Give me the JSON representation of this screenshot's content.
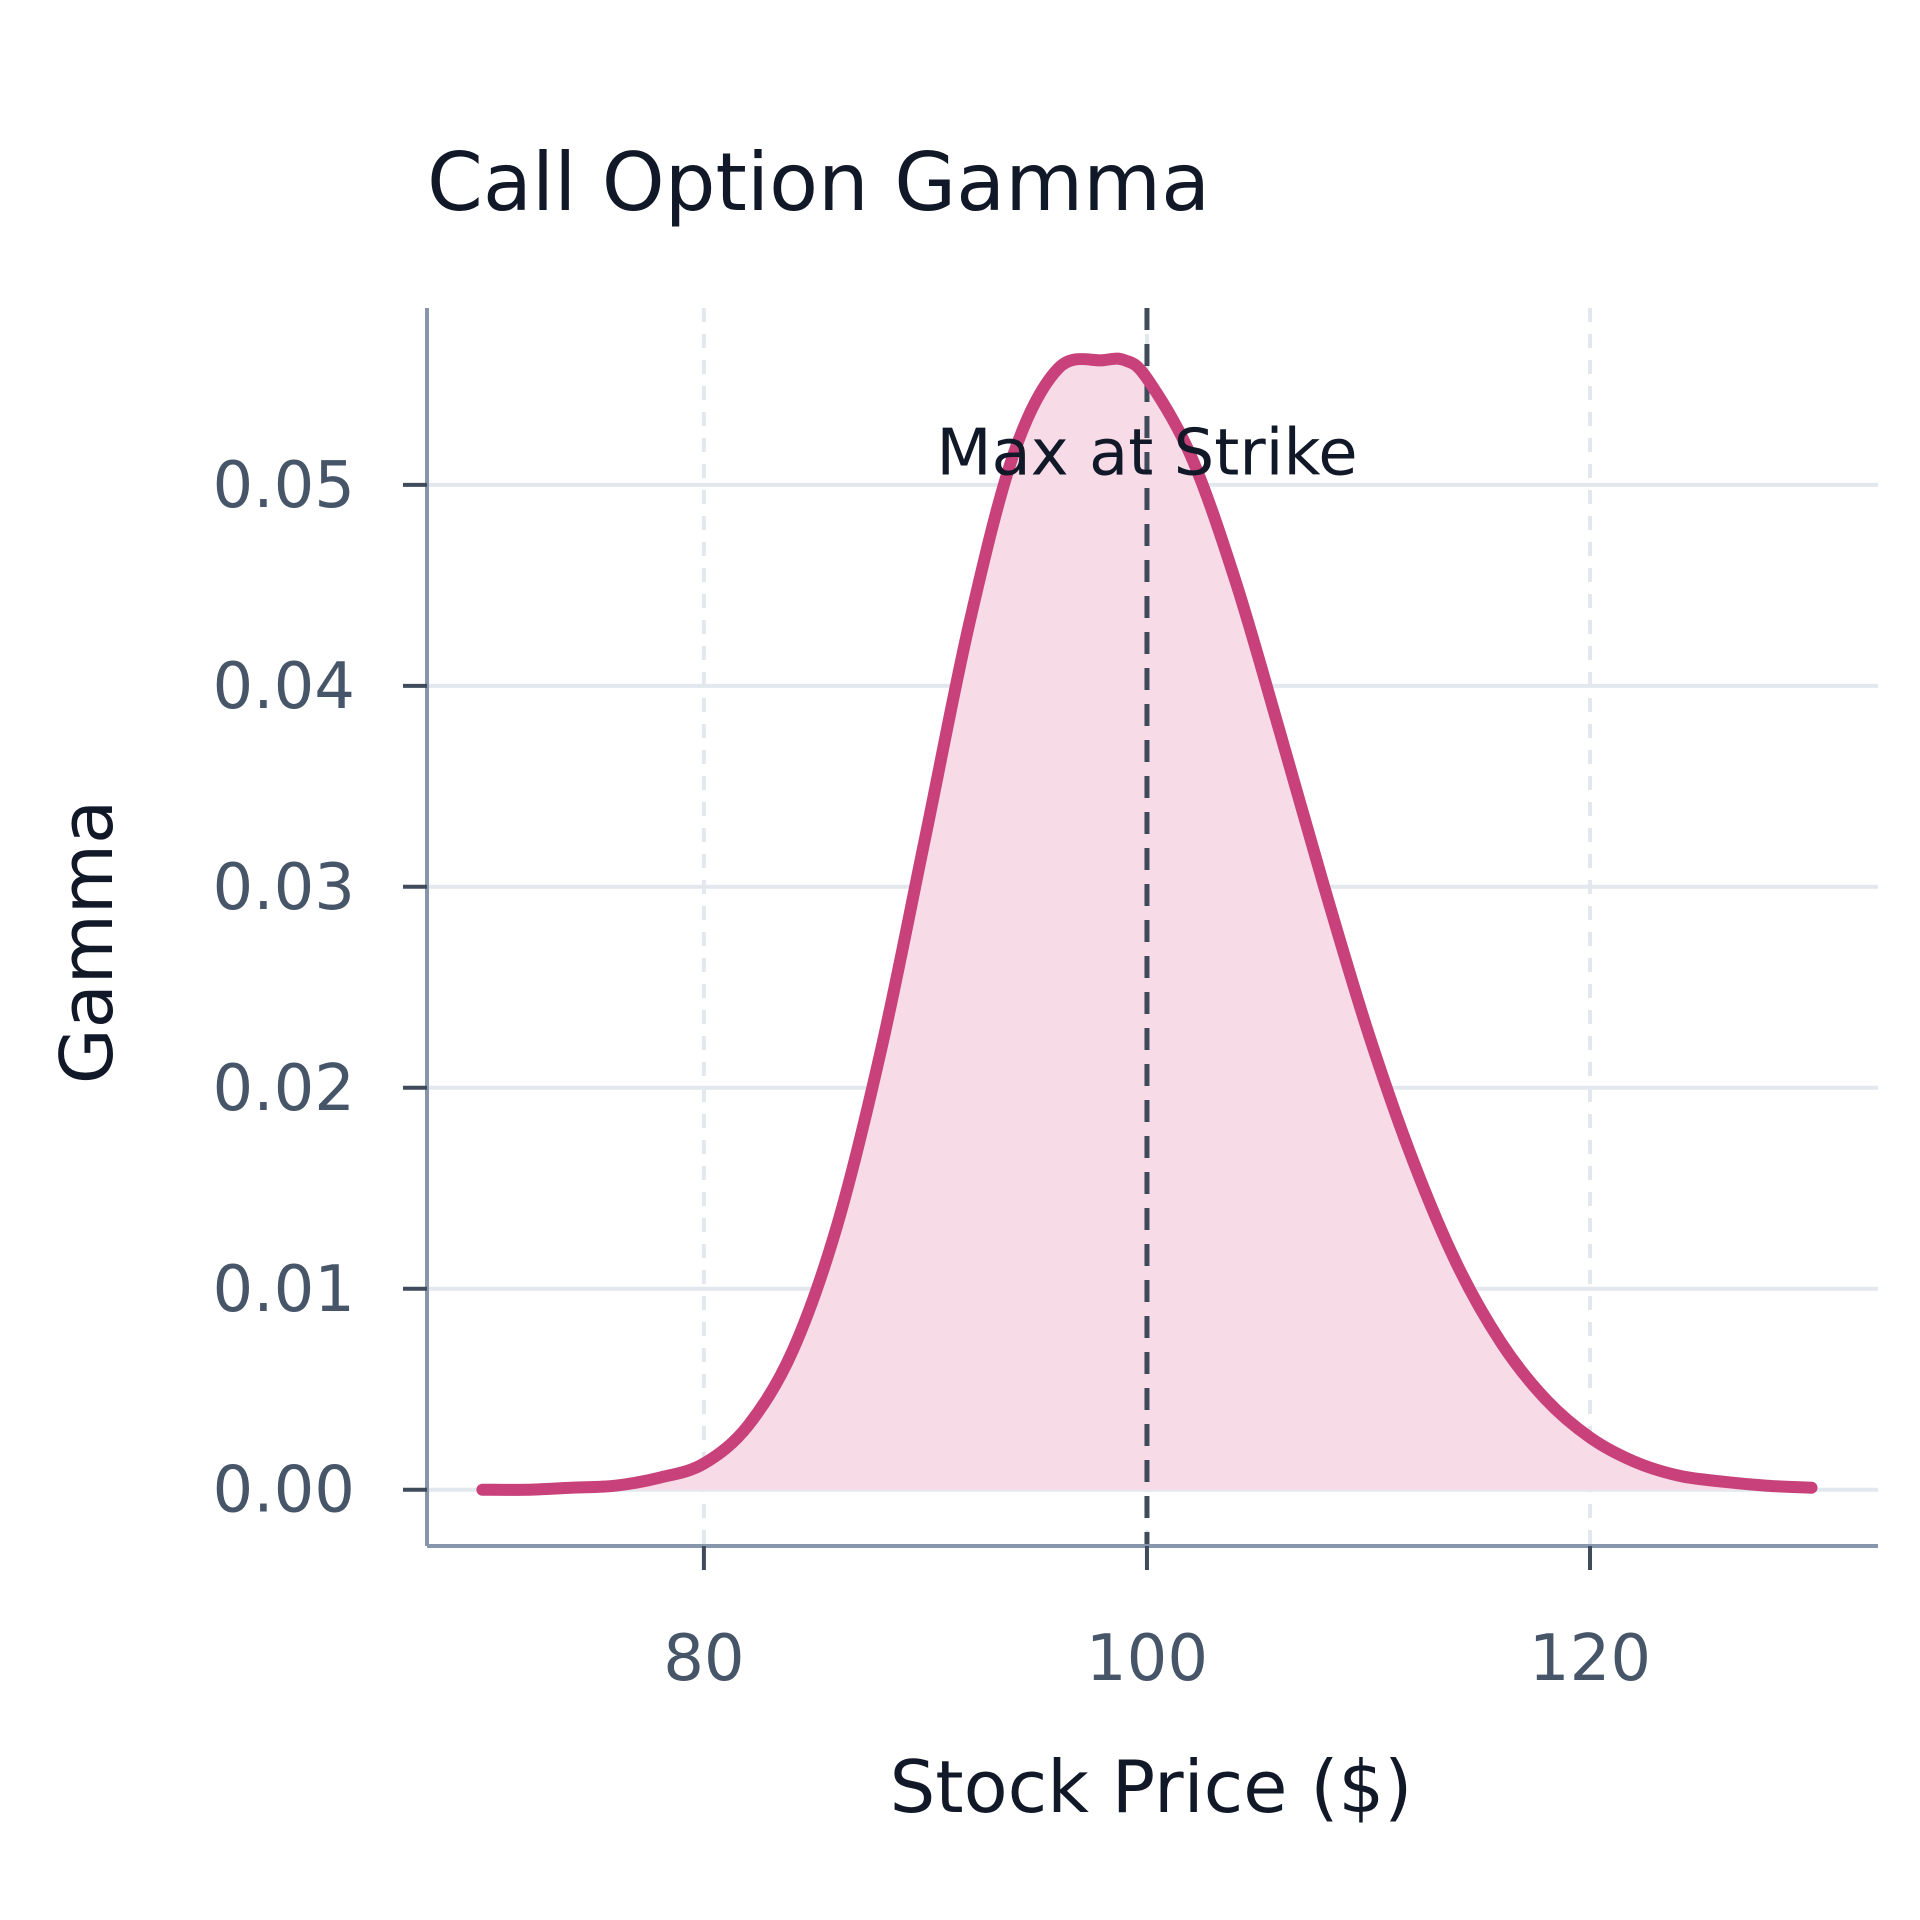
{
  "colors": {
    "line": "#c8417a",
    "fill": "#f7dce7",
    "grid": "#e3e8ef",
    "axis": "#8796aa",
    "strike_line": "#3f4b5b",
    "text": "#111827",
    "tick_text": "#475569"
  },
  "chart_data": {
    "type": "area",
    "title": "Call Option Gamma",
    "xlabel": "Stock Price ($)",
    "ylabel": "Gamma",
    "xlim": [
      67.5,
      133
    ],
    "ylim": [
      -0.0028,
      0.0588
    ],
    "x_ticks": [
      80,
      100,
      120
    ],
    "x_tick_labels": [
      "80",
      "100",
      "120"
    ],
    "y_ticks": [
      0.0,
      0.01,
      0.02,
      0.03,
      0.04,
      0.05
    ],
    "y_tick_labels": [
      "0.00",
      "0.01",
      "0.02",
      "0.03",
      "0.04",
      "0.05"
    ],
    "grid": true,
    "series": [
      {
        "x": [
          70,
          72,
          74,
          76,
          78,
          80,
          82,
          84,
          86,
          88,
          90,
          92,
          94,
          96,
          98,
          99,
          100,
          102,
          104,
          106,
          108,
          110,
          112,
          114,
          116,
          118,
          120,
          122,
          124,
          126,
          128,
          130
        ],
        "values": [
          0.0,
          0.0,
          0.0001,
          0.0002,
          0.0006,
          0.0013,
          0.0032,
          0.0069,
          0.0131,
          0.0219,
          0.0325,
          0.0432,
          0.0516,
          0.0558,
          0.0562,
          0.0562,
          0.0553,
          0.0514,
          0.0452,
          0.0377,
          0.03,
          0.0227,
          0.0164,
          0.0112,
          0.0073,
          0.0045,
          0.0026,
          0.0014,
          0.0007,
          0.0004,
          0.0002,
          0.0001
        ]
      }
    ],
    "annotations": [
      {
        "text": "Max at Strike",
        "x": 100,
        "y": 0.0515
      }
    ],
    "reference_lines": [
      {
        "orientation": "vertical",
        "x": 100,
        "style": "dashed"
      }
    ]
  }
}
